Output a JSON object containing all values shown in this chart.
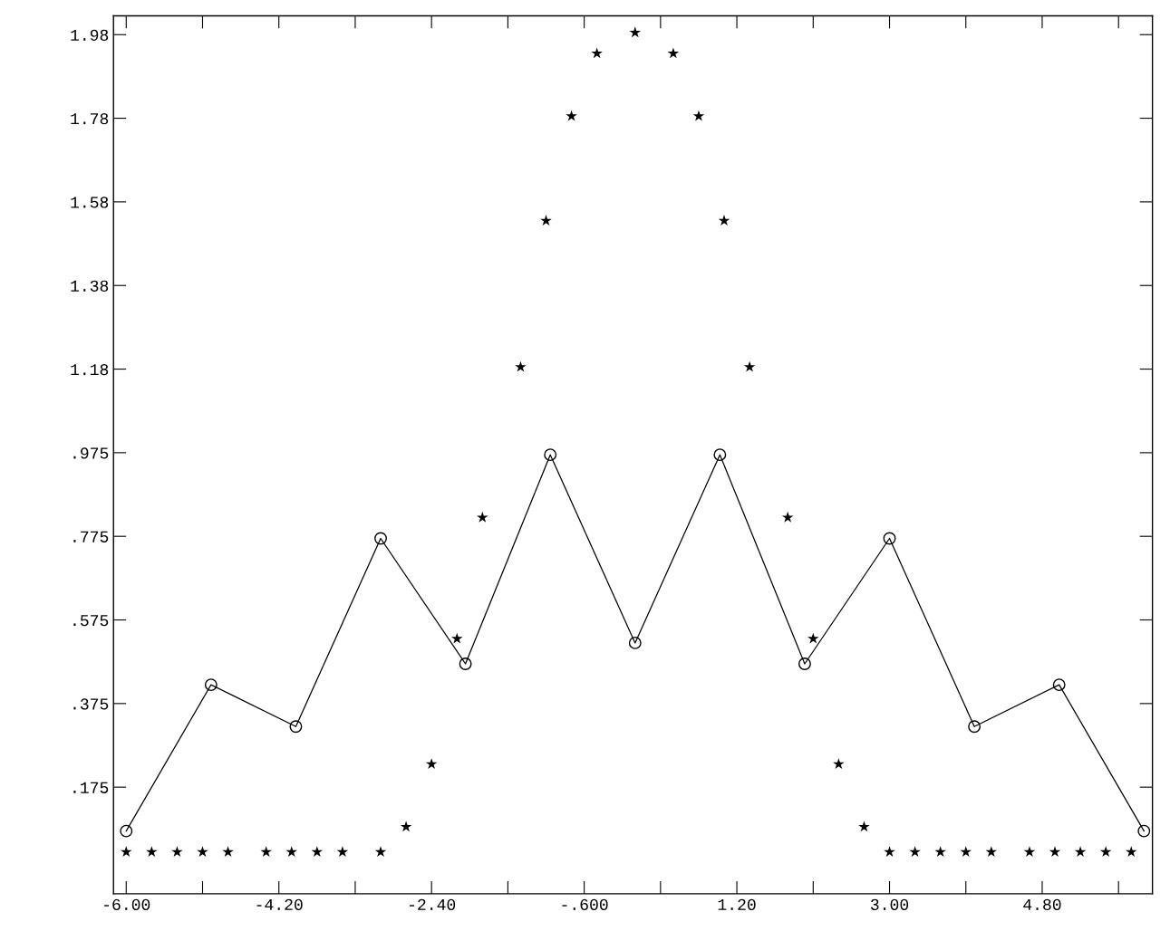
{
  "chart_data": {
    "type": "line",
    "xlim": [
      -6.15,
      6.1
    ],
    "ylim": [
      -0.08,
      2.02
    ],
    "xticks": [
      {
        "value": -6.0,
        "label": "-6.00"
      },
      {
        "value": -5.1,
        "label": null
      },
      {
        "value": -4.2,
        "label": "-4.20"
      },
      {
        "value": -3.3,
        "label": null
      },
      {
        "value": -2.4,
        "label": "-2.40"
      },
      {
        "value": -1.5,
        "label": null
      },
      {
        "value": -0.6,
        "label": "-.600"
      },
      {
        "value": 0.3,
        "label": null
      },
      {
        "value": 1.2,
        "label": "1.20"
      },
      {
        "value": 2.1,
        "label": null
      },
      {
        "value": 3.0,
        "label": "3.00"
      },
      {
        "value": 3.9,
        "label": null
      },
      {
        "value": 4.8,
        "label": "4.80"
      },
      {
        "value": 5.7,
        "label": null
      }
    ],
    "yticks": [
      {
        "value": 0.175,
        "label": ".175"
      },
      {
        "value": 0.375,
        "label": ".375"
      },
      {
        "value": 0.575,
        "label": ".575"
      },
      {
        "value": 0.775,
        "label": ".775"
      },
      {
        "value": 0.975,
        "label": ".975"
      },
      {
        "value": 1.175,
        "label": "1.18"
      },
      {
        "value": 1.375,
        "label": "1.38"
      },
      {
        "value": 1.575,
        "label": "1.58"
      },
      {
        "value": 1.775,
        "label": "1.78"
      },
      {
        "value": 1.975,
        "label": "1.98"
      }
    ],
    "grid": false,
    "legend": false,
    "series": [
      {
        "color": "#000000",
        "marker": "circle",
        "line_style": "solid",
        "x": [
          -6,
          -5,
          -4,
          -3,
          -2,
          -1,
          0,
          1,
          2,
          3,
          4,
          5,
          6
        ],
        "values": [
          0.07,
          0.42,
          0.32,
          0.77,
          0.47,
          0.97,
          0.52,
          0.97,
          0.47,
          0.77,
          0.32,
          0.42,
          0.07
        ]
      },
      {
        "type": "scatter",
        "color": "#000000",
        "marker": "star",
        "x": [
          -6.0,
          -5.7,
          -5.4,
          -5.1,
          -4.8,
          -4.35,
          -4.05,
          -3.75,
          -3.45,
          -3.0,
          -2.7,
          -2.4,
          -2.1,
          -1.8,
          -1.35,
          -1.05,
          -0.75,
          -0.45,
          0,
          0.45,
          0.75,
          1.05,
          1.35,
          1.8,
          2.1,
          2.4,
          2.7,
          3.0,
          3.3,
          3.6,
          3.9,
          4.2,
          4.65,
          4.95,
          5.25,
          5.55,
          5.85
        ],
        "values": [
          0.02,
          0.02,
          0.02,
          0.02,
          0.02,
          0.02,
          0.02,
          0.02,
          0.02,
          0.02,
          0.08,
          0.23,
          0.53,
          0.82,
          1.18,
          1.53,
          1.78,
          1.93,
          1.98,
          1.93,
          1.78,
          1.53,
          1.18,
          0.82,
          0.53,
          0.23,
          0.08,
          0.02,
          0.02,
          0.02,
          0.02,
          0.02,
          0.02,
          0.02,
          0.02,
          0.02,
          0.02
        ]
      }
    ]
  }
}
